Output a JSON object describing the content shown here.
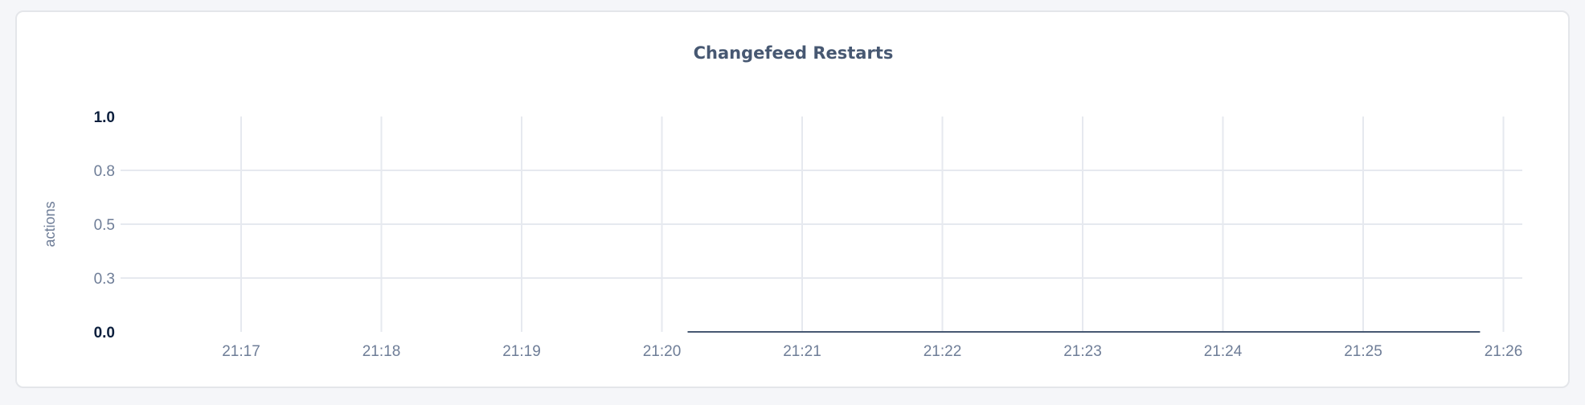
{
  "chart_data": {
    "type": "line",
    "title": "Changefeed Restarts",
    "ylabel": "actions",
    "xlabel": "",
    "ylim": [
      0,
      1.0
    ],
    "yticks": [
      {
        "value": 0.0,
        "label": "0.0",
        "bold": true
      },
      {
        "value": 0.25,
        "label": "0.3",
        "bold": false
      },
      {
        "value": 0.5,
        "label": "0.5",
        "bold": false
      },
      {
        "value": 0.75,
        "label": "0.8",
        "bold": false
      },
      {
        "value": 1.0,
        "label": "1.0",
        "bold": true
      }
    ],
    "xlim": [
      "21:16:00",
      "21:26:07"
    ],
    "xticks": [
      "21:17",
      "21:18",
      "21:19",
      "21:20",
      "21:21",
      "21:22",
      "21:23",
      "21:24",
      "21:25",
      "21:26"
    ],
    "grid": true,
    "series": [
      {
        "color": "#475872",
        "x": [
          "21:20:11",
          "21:25:50"
        ],
        "y": [
          0,
          0
        ]
      }
    ]
  }
}
